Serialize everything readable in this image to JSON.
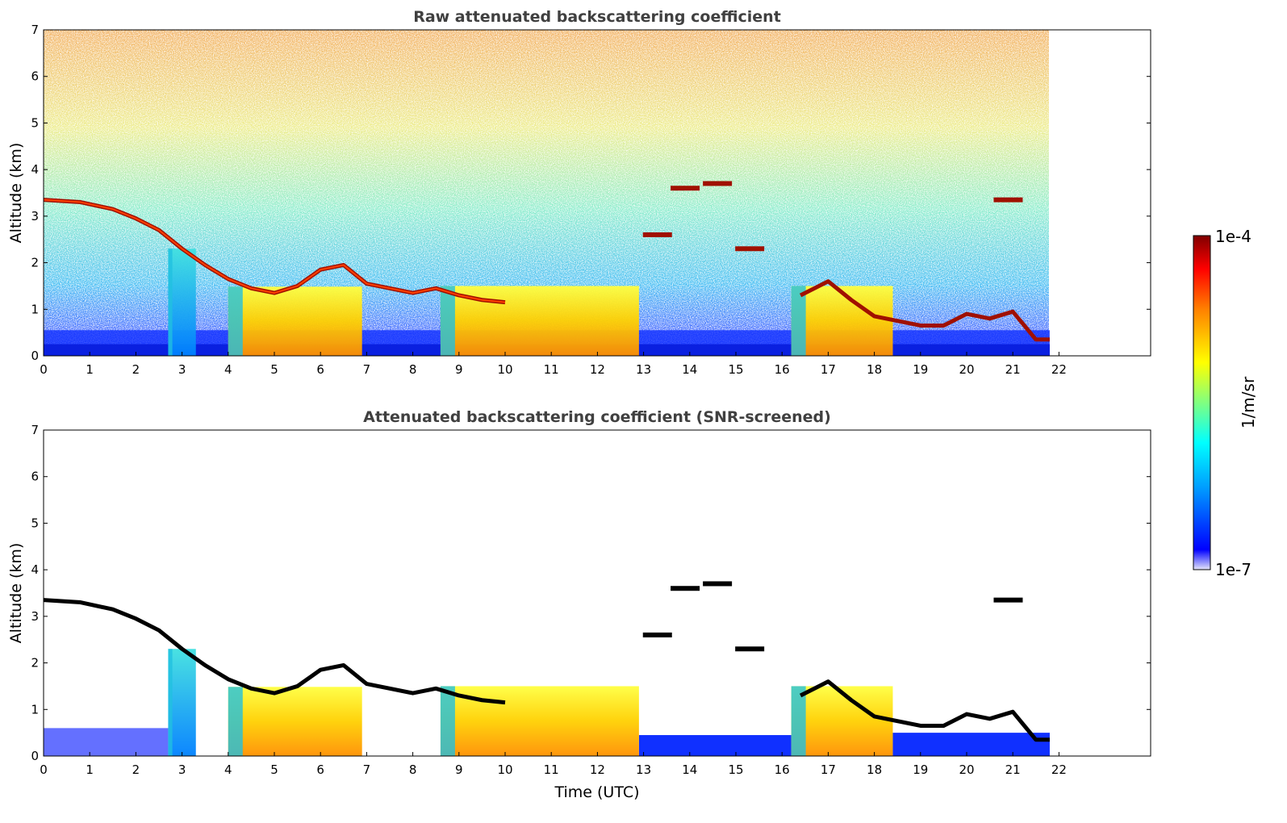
{
  "chart_data": [
    {
      "type": "heatmap",
      "title": "Raw attenuated backscattering coefficient",
      "xlabel": "",
      "ylabel": "Altitude (km)",
      "xlim": [
        0,
        24
      ],
      "ylim": [
        0,
        7
      ],
      "x_ticks": [
        "0",
        "1",
        "2",
        "3",
        "4",
        "5",
        "6",
        "7",
        "8",
        "9",
        "10",
        "11",
        "12",
        "13",
        "14",
        "15",
        "16",
        "17",
        "18",
        "19",
        "20",
        "21",
        "22"
      ],
      "y_ticks": [
        "0",
        "1",
        "2",
        "3",
        "4",
        "5",
        "6",
        "7"
      ],
      "data_end_time": 21.8,
      "features": {
        "cloud_layer": {
          "time": [
            0,
            0.8,
            1.5,
            2.0,
            2.5,
            3.0,
            3.5,
            4.0,
            4.5,
            5.0,
            5.5,
            6.0,
            6.5,
            7.0,
            7.5,
            8.0,
            8.5,
            9.0,
            9.5,
            10.0
          ],
          "altitude": [
            3.35,
            3.3,
            3.15,
            2.95,
            2.7,
            2.3,
            1.95,
            1.65,
            1.45,
            1.35,
            1.5,
            1.85,
            1.95,
            1.55,
            1.45,
            1.35,
            1.45,
            1.3,
            1.2,
            1.15
          ]
        },
        "precipitation_shafts": [
          {
            "start": 2.7,
            "end": 3.3
          },
          {
            "start": 4.0,
            "end": 6.9
          },
          {
            "start": 8.6,
            "end": 12.9
          },
          {
            "start": 16.2,
            "end": 18.4
          }
        ],
        "mid_level_patches": [
          {
            "time": 13.9,
            "altitude": 3.6
          },
          {
            "time": 14.6,
            "altitude": 3.7
          },
          {
            "time": 13.3,
            "altitude": 2.6
          },
          {
            "time": 15.3,
            "altitude": 2.3
          },
          {
            "time": 20.9,
            "altitude": 3.35
          }
        ],
        "late_layer": {
          "time": [
            16.4,
            17.0,
            17.5,
            18.0,
            18.5,
            19.0,
            19.5,
            20.0,
            20.5,
            21.0,
            21.5,
            21.8
          ],
          "altitude": [
            1.3,
            1.6,
            1.2,
            0.85,
            0.75,
            0.65,
            0.65,
            0.9,
            0.8,
            0.95,
            0.35,
            0.35
          ]
        }
      }
    },
    {
      "type": "heatmap",
      "title": "Attenuated backscattering coefficient (SNR-screened)",
      "xlabel": "Time (UTC)",
      "ylabel": "Altitude (km)",
      "xlim": [
        0,
        24
      ],
      "ylim": [
        0,
        7
      ],
      "x_ticks": [
        "0",
        "1",
        "2",
        "3",
        "4",
        "5",
        "6",
        "7",
        "8",
        "9",
        "10",
        "11",
        "12",
        "13",
        "14",
        "15",
        "16",
        "17",
        "18",
        "19",
        "20",
        "21",
        "22"
      ],
      "y_ticks": [
        "0",
        "1",
        "2",
        "3",
        "4",
        "5",
        "6",
        "7"
      ],
      "data_end_time": 21.8
    }
  ],
  "colorbar": {
    "label": "1/m/sr",
    "max_label": "1e-4",
    "min_label": "1e-7",
    "colors": [
      "#e6e6fa",
      "#0000ff",
      "#00a0ff",
      "#00ffff",
      "#80ff80",
      "#ffff00",
      "#ff8000",
      "#ff0000",
      "#800000"
    ]
  }
}
